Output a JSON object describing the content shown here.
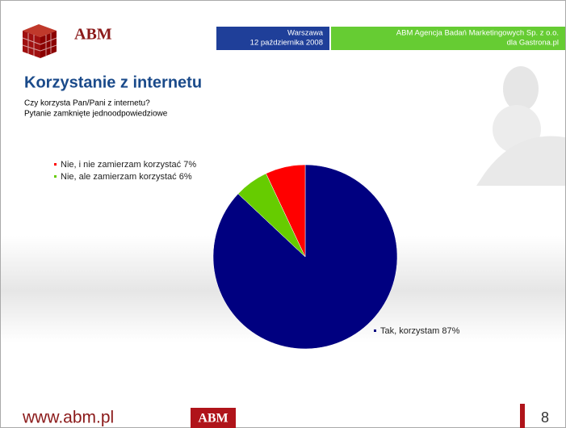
{
  "header": {
    "logo": "ABM",
    "location": "Warszawa",
    "date": "12 października 2008",
    "company": "ABM Agencja Badań Marketingowych Sp. z o.o.",
    "client": "dla Gastrona.pl"
  },
  "chart_data": {
    "type": "pie",
    "title": "Korzystanie z internetu",
    "subtitle": [
      "Czy korzysta Pan/Pani z internetu?",
      "Pytanie zamknięte jednoodpowiedziowe"
    ],
    "categories": [
      "Tak, korzystam",
      "Nie, ale zamierzam korzystać",
      "Nie, i nie zamierzam korzystać"
    ],
    "values": [
      87,
      6,
      7
    ],
    "value_labels": [
      "87%",
      "6%",
      "7%"
    ],
    "colors": [
      "#000080",
      "#66cc00",
      "#ff0000"
    ]
  },
  "footer": {
    "url": "www.abm.pl",
    "logo": "ABM",
    "page": "8"
  }
}
